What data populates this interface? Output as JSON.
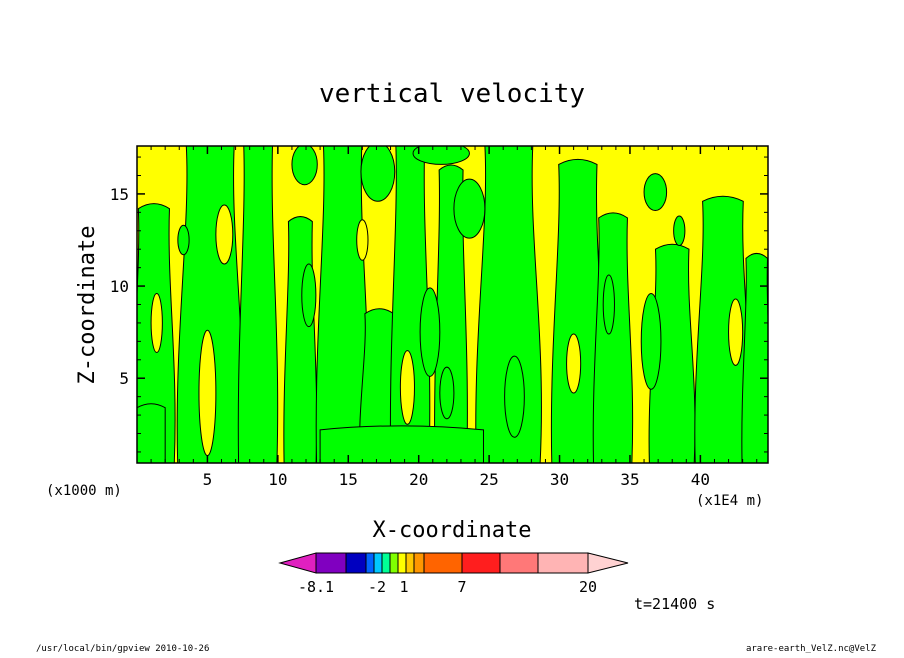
{
  "chart_data": {
    "type": "heatmap",
    "title": "vertical velocity",
    "xlabel": "X-coordinate",
    "ylabel": "Z-coordinate",
    "x_unit_left": "(x1000 m)",
    "x_unit_right": "(x1E4 m)",
    "xlim": [
      0,
      44.8
    ],
    "ylim": [
      0.4,
      17.6
    ],
    "x_ticks": [
      5,
      10,
      15,
      20,
      25,
      30,
      35,
      40
    ],
    "x_tick_labels": [
      "5",
      "10",
      "15",
      "20",
      "25",
      "30",
      "35",
      "40"
    ],
    "y_ticks": [
      5,
      10,
      15
    ],
    "y_tick_labels": [
      "5",
      "10",
      "15"
    ],
    "background_color": "#ffff00",
    "fill_color": "#00ff00",
    "outline_color": "#000000",
    "colorbar": {
      "colors": [
        "#e020c0",
        "#8000c0",
        "#0000c0",
        "#0064ff",
        "#00c8ff",
        "#00ff96",
        "#80ff00",
        "#ffff00",
        "#ffc800",
        "#ff9600",
        "#ff6400",
        "#ff1e1e",
        "#ff7878",
        "#ffb4b4",
        "#ffd2d2"
      ],
      "tick_labels": [
        "-8.1",
        "-2",
        "1",
        "7",
        "20"
      ]
    },
    "time_label": "t=21400 s",
    "footer_left": "/usr/local/bin/gpview  2010-10-26",
    "footer_right": "arare-earth_VelZ.nc@VelZ",
    "green_regions": [
      {
        "x_center": 1.2,
        "x_halfwidth": 1.3,
        "z_top": 14.2
      },
      {
        "x_center": 5.2,
        "x_halfwidth": 2.0,
        "z_top": 17.6
      },
      {
        "x_center": 8.6,
        "x_halfwidth": 1.2,
        "z_top": 17.6
      },
      {
        "x_center": 11.6,
        "x_halfwidth": 1.0,
        "z_top": 13.5
      },
      {
        "x_center": 14.6,
        "x_halfwidth": 1.6,
        "z_top": 17.6
      },
      {
        "x_center": 17.2,
        "x_halfwidth": 1.2,
        "z_top": 8.5
      },
      {
        "x_center": 19.4,
        "x_halfwidth": 1.2,
        "z_top": 17.6
      },
      {
        "x_center": 22.3,
        "x_halfwidth": 1.0,
        "z_top": 16.3
      },
      {
        "x_center": 26.4,
        "x_halfwidth": 2.0,
        "z_top": 17.6
      },
      {
        "x_center": 31.3,
        "x_halfwidth": 1.6,
        "z_top": 16.6
      },
      {
        "x_center": 33.8,
        "x_halfwidth": 1.2,
        "z_top": 13.7
      },
      {
        "x_center": 38.0,
        "x_halfwidth": 1.4,
        "z_top": 12.0
      },
      {
        "x_center": 41.6,
        "x_halfwidth": 1.7,
        "z_top": 14.6
      },
      {
        "x_center": 44.0,
        "x_halfwidth": 0.9,
        "z_top": 11.5
      }
    ],
    "green_blobs": [
      {
        "x": 11.9,
        "z": 16.6,
        "rx": 0.9,
        "rz": 1.1
      },
      {
        "x": 17.1,
        "z": 16.2,
        "rx": 1.2,
        "rz": 1.6
      },
      {
        "x": 21.6,
        "z": 17.2,
        "rx": 2.0,
        "rz": 0.6
      },
      {
        "x": 23.6,
        "z": 14.2,
        "rx": 1.1,
        "rz": 1.6
      },
      {
        "x": 36.8,
        "z": 15.1,
        "rx": 0.8,
        "rz": 1.0
      },
      {
        "x": 38.5,
        "z": 13.0,
        "rx": 0.4,
        "rz": 0.8
      },
      {
        "x": 36.5,
        "z": 7.0,
        "rx": 0.7,
        "rz": 2.6
      },
      {
        "x": 33.5,
        "z": 9.0,
        "rx": 0.4,
        "rz": 1.6
      },
      {
        "x": 20.8,
        "z": 7.5,
        "rx": 0.7,
        "rz": 2.4
      },
      {
        "x": 22.0,
        "z": 4.2,
        "rx": 0.5,
        "rz": 1.4
      },
      {
        "x": 26.8,
        "z": 4.0,
        "rx": 0.7,
        "rz": 2.2
      },
      {
        "x": 3.3,
        "z": 12.5,
        "rx": 0.4,
        "rz": 0.8
      },
      {
        "x": 12.2,
        "z": 9.5,
        "rx": 0.5,
        "rz": 1.7
      }
    ],
    "yellow_holes": [
      {
        "x": 5.0,
        "z": 4.2,
        "rx": 0.6,
        "rz": 3.4
      },
      {
        "x": 6.2,
        "z": 12.8,
        "rx": 0.6,
        "rz": 1.6
      },
      {
        "x": 19.2,
        "z": 4.5,
        "rx": 0.5,
        "rz": 2.0
      },
      {
        "x": 31.0,
        "z": 5.8,
        "rx": 0.5,
        "rz": 1.6
      },
      {
        "x": 42.5,
        "z": 7.5,
        "rx": 0.5,
        "rz": 1.8
      },
      {
        "x": 16.0,
        "z": 12.5,
        "rx": 0.4,
        "rz": 1.1
      },
      {
        "x": 1.4,
        "z": 8.0,
        "rx": 0.4,
        "rz": 1.6
      }
    ],
    "bottom_green_bands": [
      {
        "x_start": 13.0,
        "x_end": 24.6,
        "z_top": 2.2
      },
      {
        "x_start": 0.0,
        "x_end": 2.0,
        "z_top": 3.4
      }
    ]
  }
}
